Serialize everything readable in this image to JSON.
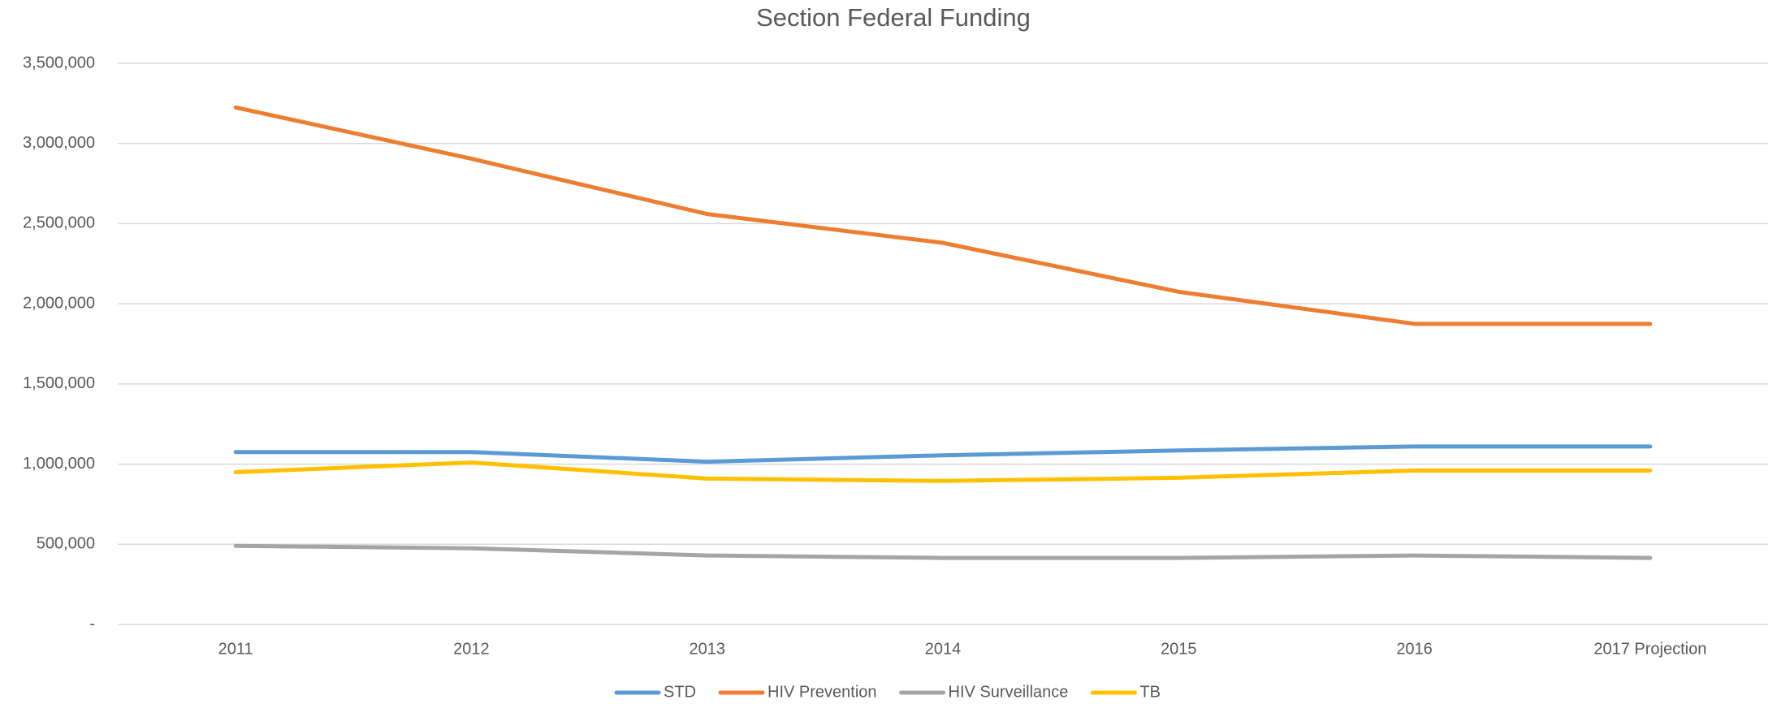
{
  "chart_data": {
    "type": "line",
    "title": "Section Federal Funding",
    "categories": [
      "2011",
      "2012",
      "2013",
      "2014",
      "2015",
      "2016",
      "2017 Projection"
    ],
    "series": [
      {
        "name": "STD",
        "color": "#5b9bd5",
        "values": [
          1075000,
          1075000,
          1015000,
          1055000,
          1085000,
          1110000,
          1110000
        ]
      },
      {
        "name": "HIV Prevention",
        "color": "#ed7d31",
        "values": [
          3225000,
          2905000,
          2560000,
          2380000,
          2075000,
          1875000,
          1875000
        ]
      },
      {
        "name": "HIV Surveillance",
        "color": "#a5a5a5",
        "values": [
          490000,
          475000,
          430000,
          415000,
          415000,
          430000,
          415000
        ]
      },
      {
        "name": "TB",
        "color": "#ffc000",
        "values": [
          950000,
          1010000,
          910000,
          895000,
          915000,
          960000,
          960000
        ]
      }
    ],
    "ylim": [
      0,
      3500000
    ],
    "yticks": [
      {
        "value": 0,
        "label": "-"
      },
      {
        "value": 500000,
        "label": "500,000"
      },
      {
        "value": 1000000,
        "label": "1,000,000"
      },
      {
        "value": 1500000,
        "label": "1,500,000"
      },
      {
        "value": 2000000,
        "label": "2,000,000"
      },
      {
        "value": 2500000,
        "label": "2,500,000"
      },
      {
        "value": 3000000,
        "label": "3,000,000"
      },
      {
        "value": 3500000,
        "label": "3,500,000"
      }
    ],
    "grid": true,
    "legend": "bottom"
  }
}
